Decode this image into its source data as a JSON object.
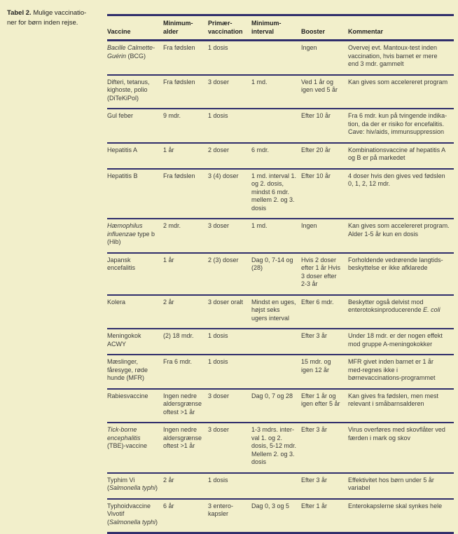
{
  "colors": {
    "background": "#f2efcb",
    "rule": "#2f2d6b",
    "text": "#3a3a3a",
    "heading": "#1f1f1f"
  },
  "caption": {
    "prefix": "Tabel 2.",
    "line1": "Mulige vaccinatio-",
    "line2": "ner for børn inden rejse."
  },
  "table": {
    "columns": [
      "Vaccine",
      "Minimum-alder",
      "Primær-vaccination",
      "Minimum-interval",
      "Booster",
      "Kommentar"
    ],
    "rows": [
      [
        [
          {
            "t": "Bacille Calmette-Guérin",
            "i": true
          },
          {
            "t": " (BCG)"
          }
        ],
        "Fra fødslen",
        "1 dosis",
        "",
        "Ingen",
        "Overvej evt. Mantoux-test inden vaccination, hvis barnet er mere end 3 mdr. gammelt"
      ],
      [
        "Difteri, tetanus, kighoste, polio (DiTeKiPol)",
        "Fra fødslen",
        "3 doser",
        "1 md.",
        "Ved 1 år og igen ved 5 år",
        "Kan gives som accelereret program"
      ],
      [
        "Gul feber",
        "9 mdr.",
        "1 dosis",
        "",
        "Efter 10 år",
        "Fra 6 mdr. kun på tvingende indika-tion, da der er risiko for encefalitis. Cave: hiv/aids, immunsuppression"
      ],
      [
        "Hepatitis A",
        "1 år",
        "2 doser",
        "6 mdr.",
        "Efter 20 år",
        "Kombinationsvaccine af hepatitis A og B er på markedet"
      ],
      [
        "Hepatitis B",
        "Fra fødslen",
        "3 (4) doser",
        "1 md. interval 1. og 2. dosis, mindst 6 mdr. mellem 2. og 3. dosis",
        "Efter 10 år",
        "4 doser hvis den gives ved fødslen 0, 1, 2, 12 mdr."
      ],
      [
        [
          {
            "t": "Hæmophilus influenzae",
            "i": true
          },
          {
            "t": " type b (Hib)"
          }
        ],
        "2 mdr.",
        "3 doser",
        "1 md.",
        "Ingen",
        "Kan gives som accelereret program. Alder 1-5 år kun en dosis"
      ],
      [
        "Japansk encefalitis",
        "1 år",
        "2 (3) doser",
        "Dag 0, 7-14 og (28)",
        "Hvis 2 doser efter 1 år Hvis 3 doser efter 2-3 år",
        "Forholdende vedrørende langtids-beskyttelse er ikke afklarede"
      ],
      [
        "Kolera",
        "2 år",
        "3 doser oralt",
        "Mindst en uges, højst seks ugers interval",
        "Efter 6 mdr.",
        [
          {
            "t": "Beskytter også delvist mod enterotoksinproducerende "
          },
          {
            "t": "E. coli",
            "i": true
          }
        ]
      ],
      [
        "Meningokok ACWY",
        "(2) 18 mdr.",
        "1 dosis",
        "",
        "Efter 3 år",
        "Under 18 mdr. er der nogen effekt mod gruppe A-meningokokker"
      ],
      [
        "Mæslinger, fåresyge, røde hunde (MFR)",
        "Fra 6 mdr.",
        "1 dosis",
        "",
        "15 mdr. og igen 12 år",
        "MFR givet inden barnet er 1 år med-regnes ikke i børnevaccinations-programmet"
      ],
      [
        "Rabiesvaccine",
        "Ingen nedre aldersgrænse oftest >1 år",
        "3 doser",
        "Dag 0, 7 og 28",
        "Efter 1 år og igen efter 5 år",
        "Kan gives fra fødslen, men mest relevant i småbarnsalderen"
      ],
      [
        [
          {
            "t": "Tick-borne encephalitis",
            "i": true
          },
          {
            "t": " (TBE)-vaccine"
          }
        ],
        "Ingen nedre aldersgrænse oftest >1 år",
        "3 doser",
        "1-3 mdrs. inter-val 1. og 2. dosis, 5-12 mdr. Mellem 2. og 3. dosis",
        "Efter 3 år",
        "Virus overføres med skovflåter ved færden i mark og skov"
      ],
      [
        [
          {
            "t": "Typhim Vi ("
          },
          {
            "t": "Salmonella typhi",
            "i": true
          },
          {
            "t": ")"
          }
        ],
        "2 år",
        "1 dosis",
        "",
        "Efter 3 år",
        "Effektivitet hos børn under 5 år variabel"
      ],
      [
        [
          {
            "t": "Typhoidvaccine Vivotif ("
          },
          {
            "t": "Salmonella typhi",
            "i": true
          },
          {
            "t": ")"
          }
        ],
        "6 år",
        "3 entero-kapsler",
        "Dag 0, 3 og 5",
        "Efter 1 år",
        "Enterokapslerne skal synkes hele"
      ]
    ]
  }
}
